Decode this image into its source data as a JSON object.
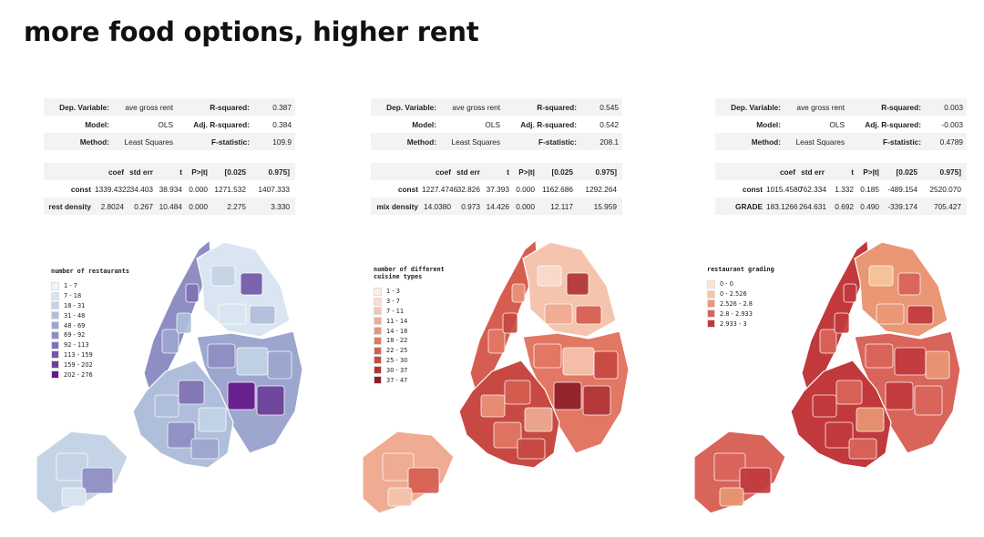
{
  "title": "more food options, higher rent",
  "panels": [
    {
      "regression": {
        "top_rows": [
          [
            "Dep. Variable:",
            "ave gross rent",
            "R-squared:",
            "0.387"
          ],
          [
            "Model:",
            "OLS",
            "Adj. R-squared:",
            "0.384"
          ],
          [
            "Method:",
            "Least Squares",
            "F-statistic:",
            "109.9"
          ]
        ],
        "coef_header": [
          "",
          "coef",
          "std err",
          "t",
          "P>|t|",
          "[0.025",
          "0.975]"
        ],
        "coef_rows": [
          [
            "const",
            "1339.4322",
            "34.403",
            "38.934",
            "0.000",
            "1271.532",
            "1407.333"
          ],
          [
            "rest density",
            "2.8024",
            "0.267",
            "10.484",
            "0.000",
            "2.275",
            "3.330"
          ]
        ]
      },
      "legend_title": "number of restaurants",
      "legend_items": [
        "1 - 7",
        "7 - 18",
        "18 - 31",
        "31 - 48",
        "48 - 69",
        "69 - 92",
        "92 - 113",
        "113 - 159",
        "159 - 202",
        "202 - 276"
      ],
      "palette": [
        "#f2f6fa",
        "#d9e5f0",
        "#c4d4e6",
        "#afbedb",
        "#9da6cf",
        "#8f8ec3",
        "#8072b6",
        "#7558a8",
        "#6e3f9a",
        "#64178a"
      ],
      "color_levels": [
        2,
        5,
        1,
        4,
        3,
        6,
        2,
        7,
        1,
        3,
        5,
        2,
        4,
        9,
        8,
        3,
        6,
        2,
        5,
        4
      ]
    },
    {
      "regression": {
        "top_rows": [
          [
            "Dep. Variable:",
            "ave gross rent",
            "R-squared:",
            "0.545"
          ],
          [
            "Model:",
            "OLS",
            "Adj. R-squared:",
            "0.542"
          ],
          [
            "Method:",
            "Least Squares",
            "F-statistic:",
            "208.1"
          ]
        ],
        "coef_header": [
          "",
          "coef",
          "std err",
          "t",
          "P>|t|",
          "[0.025",
          "0.975]"
        ],
        "coef_rows": [
          [
            "const",
            "1227.4746",
            "32.826",
            "37.393",
            "0.000",
            "1162.686",
            "1292.264"
          ],
          [
            "mix density",
            "14.0380",
            "0.973",
            "14.426",
            "0.000",
            "12.117",
            "15.959"
          ]
        ]
      },
      "legend_title": "number of different\ncuisine types",
      "legend_items": [
        "1 - 3",
        "3 - 7",
        "7 - 11",
        "11 - 14",
        "14 - 18",
        "18 - 22",
        "22 - 25",
        "25 - 30",
        "30 - 37",
        "37 - 47"
      ],
      "palette": [
        "#fcefe8",
        "#f9dccd",
        "#f5c4ae",
        "#f0ab93",
        "#eb917a",
        "#e27764",
        "#d65e50",
        "#c84842",
        "#b13537",
        "#8e1f2a"
      ],
      "color_levels": [
        3,
        6,
        2,
        5,
        7,
        4,
        1,
        8,
        3,
        6,
        5,
        2,
        7,
        9,
        8,
        4,
        6,
        3,
        5,
        7
      ]
    },
    {
      "regression": {
        "top_rows": [
          [
            "Dep. Variable:",
            "ave gross rent",
            "R-squared:",
            "0.003"
          ],
          [
            "Model:",
            "OLS",
            "Adj. R-squared:",
            "-0.003"
          ],
          [
            "Method:",
            "Least Squares",
            "F-statistic:",
            "0.4789"
          ]
        ],
        "coef_header": [
          "",
          "coef",
          "std err",
          "t",
          "P>|t|",
          "[0.025",
          "0.975]"
        ],
        "coef_rows": [
          [
            "const",
            "1015.4580",
            "762.334",
            "1.332",
            "0.185",
            "-489.154",
            "2520.070"
          ],
          [
            "GRADE",
            "183.1266",
            "264.631",
            "0.692",
            "0.490",
            "-339.174",
            "705.427"
          ]
        ]
      },
      "legend_title": "restaurant grading",
      "legend_items": [
        "0 - 0",
        "0 - 2.526",
        "2.526 - 2.8",
        "2.8 - 2.933",
        "2.933 - 3"
      ],
      "palette": [
        "#fde6c8",
        "#f7c79b",
        "#e99775",
        "#d9645a",
        "#c2393c"
      ],
      "color_levels": [
        3,
        4,
        2,
        3,
        4,
        4,
        1,
        3,
        2,
        4,
        3,
        4,
        2,
        4,
        3,
        4,
        3,
        2,
        4,
        3
      ]
    }
  ]
}
